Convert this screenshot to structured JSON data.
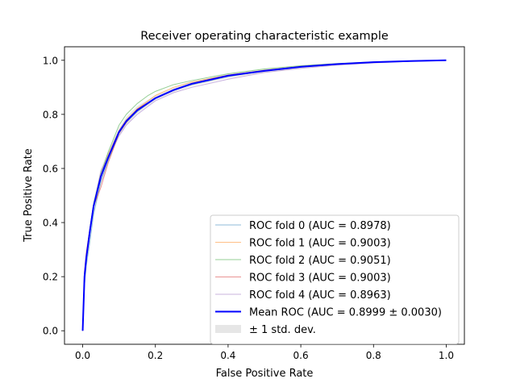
{
  "chart_data": {
    "type": "line",
    "title": "Receiver operating characteristic example",
    "xlabel": "False Positive Rate",
    "ylabel": "True Positive Rate",
    "xlim": [
      -0.05,
      1.05
    ],
    "ylim": [
      -0.05,
      1.05
    ],
    "xticks": [
      "0.0",
      "0.2",
      "0.4",
      "0.6",
      "0.8",
      "1.0"
    ],
    "yticks": [
      "0.0",
      "0.2",
      "0.4",
      "0.6",
      "0.8",
      "1.0"
    ],
    "grid": false,
    "legend_position": "lower right",
    "series": [
      {
        "name": "ROC fold 0 (AUC = 0.8978)",
        "color": "#1f77b4",
        "alpha": 0.5,
        "x": [
          0,
          0.005,
          0.01,
          0.02,
          0.03,
          0.05,
          0.07,
          0.1,
          0.12,
          0.15,
          0.2,
          0.25,
          0.3,
          0.4,
          0.5,
          0.6,
          0.7,
          0.8,
          0.9,
          1.0
        ],
        "y": [
          0,
          0.17,
          0.24,
          0.33,
          0.43,
          0.55,
          0.63,
          0.73,
          0.77,
          0.81,
          0.86,
          0.89,
          0.91,
          0.94,
          0.96,
          0.975,
          0.985,
          0.992,
          0.997,
          1.0
        ]
      },
      {
        "name": "ROC fold 1 (AUC = 0.9003)",
        "color": "#ff7f0e",
        "alpha": 0.5,
        "x": [
          0,
          0.005,
          0.01,
          0.02,
          0.03,
          0.05,
          0.07,
          0.1,
          0.12,
          0.15,
          0.2,
          0.25,
          0.3,
          0.4,
          0.5,
          0.6,
          0.7,
          0.8,
          0.9,
          1.0
        ],
        "y": [
          0,
          0.2,
          0.27,
          0.37,
          0.46,
          0.57,
          0.65,
          0.74,
          0.78,
          0.82,
          0.87,
          0.9,
          0.92,
          0.945,
          0.962,
          0.977,
          0.987,
          0.993,
          0.997,
          1.0
        ]
      },
      {
        "name": "ROC fold 2 (AUC = 0.9051)",
        "color": "#2ca02c",
        "alpha": 0.5,
        "x": [
          0,
          0.005,
          0.01,
          0.02,
          0.03,
          0.05,
          0.07,
          0.1,
          0.12,
          0.15,
          0.18,
          0.2,
          0.25,
          0.3,
          0.4,
          0.5,
          0.6,
          0.7,
          0.8,
          0.9,
          1.0
        ],
        "y": [
          0,
          0.21,
          0.28,
          0.38,
          0.47,
          0.58,
          0.66,
          0.76,
          0.8,
          0.84,
          0.87,
          0.885,
          0.91,
          0.925,
          0.95,
          0.968,
          0.98,
          0.988,
          0.994,
          0.998,
          1.0
        ]
      },
      {
        "name": "ROC fold 3 (AUC = 0.9003)",
        "color": "#d62728",
        "alpha": 0.5,
        "x": [
          0,
          0.005,
          0.01,
          0.02,
          0.03,
          0.05,
          0.07,
          0.1,
          0.12,
          0.15,
          0.2,
          0.25,
          0.3,
          0.4,
          0.5,
          0.6,
          0.7,
          0.8,
          0.9,
          1.0
        ],
        "y": [
          0,
          0.22,
          0.29,
          0.38,
          0.46,
          0.53,
          0.62,
          0.73,
          0.77,
          0.82,
          0.86,
          0.89,
          0.915,
          0.945,
          0.963,
          0.977,
          0.986,
          0.993,
          0.997,
          1.0
        ]
      },
      {
        "name": "ROC fold 4 (AUC = 0.8963)",
        "color": "#9467bd",
        "alpha": 0.5,
        "x": [
          0,
          0.005,
          0.01,
          0.02,
          0.03,
          0.05,
          0.07,
          0.1,
          0.12,
          0.15,
          0.2,
          0.25,
          0.3,
          0.4,
          0.5,
          0.6,
          0.7,
          0.8,
          0.9,
          1.0
        ],
        "y": [
          0,
          0.19,
          0.26,
          0.37,
          0.46,
          0.59,
          0.64,
          0.72,
          0.76,
          0.8,
          0.85,
          0.88,
          0.9,
          0.93,
          0.955,
          0.97,
          0.982,
          0.99,
          0.996,
          1.0
        ]
      },
      {
        "name": "Mean ROC (AUC = 0.8999 ± 0.0030)",
        "color": "#0000ff",
        "alpha": 1.0,
        "x": [
          0,
          0.005,
          0.01,
          0.02,
          0.03,
          0.05,
          0.07,
          0.1,
          0.12,
          0.15,
          0.2,
          0.25,
          0.3,
          0.4,
          0.5,
          0.6,
          0.7,
          0.8,
          0.9,
          1.0
        ],
        "y": [
          0,
          0.2,
          0.27,
          0.37,
          0.46,
          0.57,
          0.64,
          0.735,
          0.775,
          0.815,
          0.86,
          0.89,
          0.913,
          0.943,
          0.961,
          0.976,
          0.986,
          0.993,
          0.997,
          1.0
        ]
      }
    ],
    "std_band": {
      "name": "± 1 std. dev.",
      "color": "#808080",
      "alpha": 0.2,
      "x": [
        0,
        0.005,
        0.01,
        0.02,
        0.03,
        0.05,
        0.07,
        0.1,
        0.12,
        0.15,
        0.2,
        0.25,
        0.3,
        0.4,
        0.5,
        0.6,
        0.7,
        0.8,
        0.9,
        1.0
      ],
      "lower": [
        0,
        0.18,
        0.25,
        0.35,
        0.44,
        0.54,
        0.62,
        0.72,
        0.762,
        0.805,
        0.852,
        0.882,
        0.905,
        0.935,
        0.955,
        0.971,
        0.982,
        0.99,
        0.995,
        1.0
      ],
      "upper": [
        0,
        0.22,
        0.29,
        0.39,
        0.48,
        0.6,
        0.66,
        0.75,
        0.79,
        0.83,
        0.87,
        0.898,
        0.92,
        0.95,
        0.967,
        0.98,
        0.989,
        0.995,
        0.998,
        1.0
      ]
    }
  }
}
